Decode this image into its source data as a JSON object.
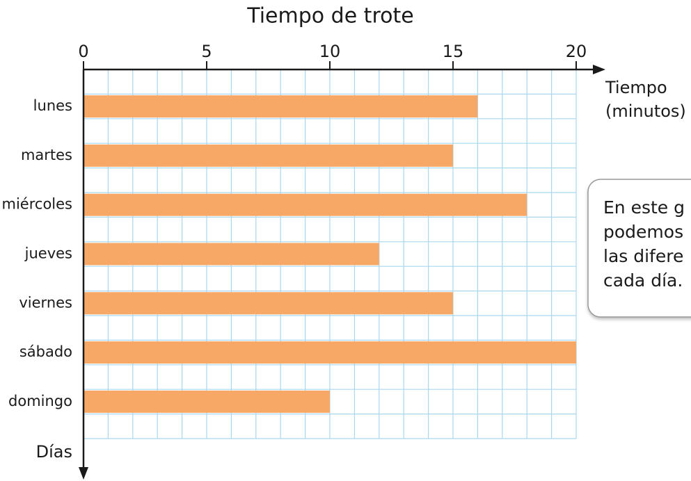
{
  "chart_data": {
    "type": "bar",
    "orientation": "horizontal",
    "title": "Tiempo de trote",
    "x_label": [
      "Tiempo",
      "(minutos)"
    ],
    "y_label": "Días",
    "categories": [
      "lunes",
      "martes",
      "miércoles",
      "jueves",
      "viernes",
      "sábado",
      "domingo"
    ],
    "values": [
      16,
      15,
      18,
      12,
      15,
      20,
      10
    ],
    "color": "#f7a866",
    "xlim": [
      0,
      20
    ],
    "xticks": [
      0,
      5,
      10,
      15,
      20
    ],
    "grid": true,
    "grid_color": "#a9d7ef",
    "annotation": [
      "En este g",
      "podemos",
      "las difere",
      "cada día."
    ]
  }
}
